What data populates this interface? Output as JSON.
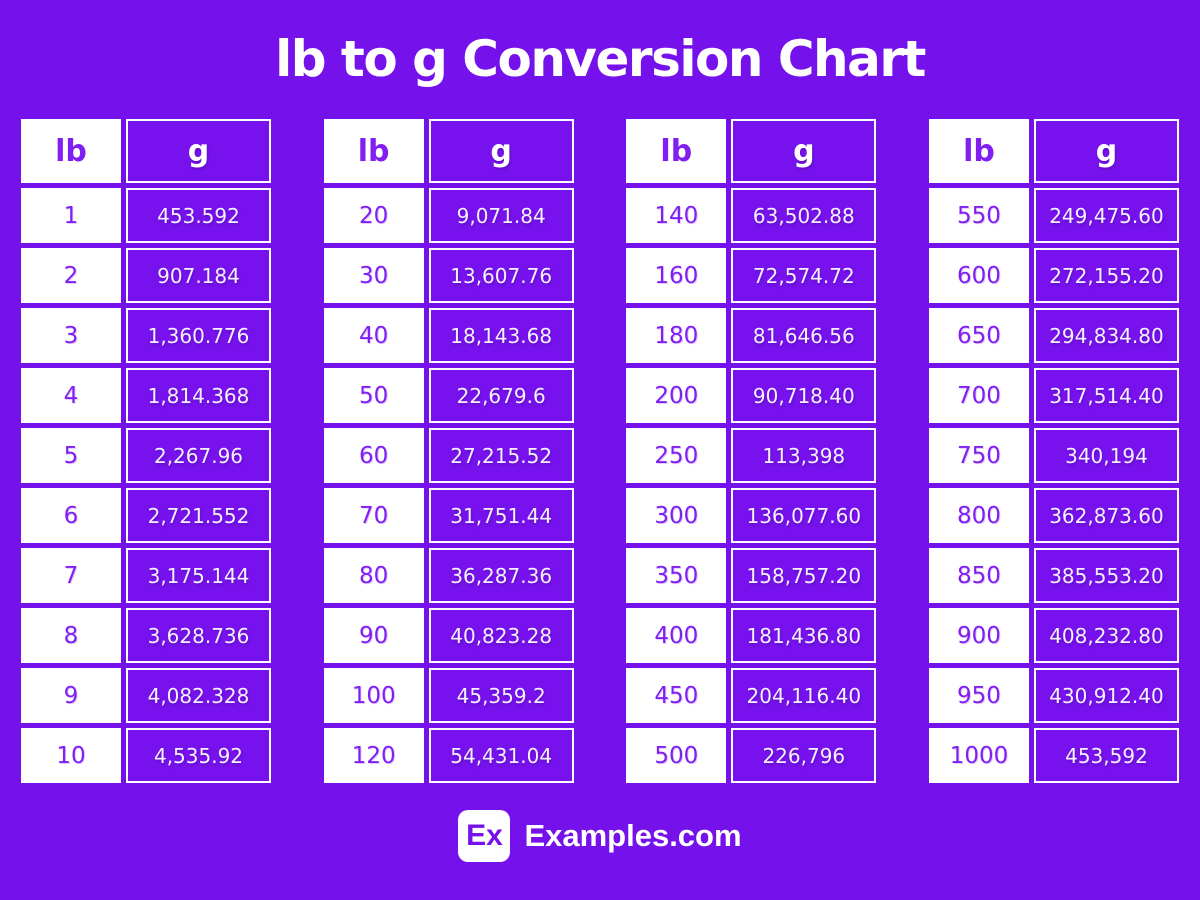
{
  "page": {
    "title": "lb to g Conversion Chart"
  },
  "colors": {
    "background": "#7512EC",
    "cell_purple": "#7712EE",
    "text_purple": "#811FF2",
    "white": "#FFFFFF"
  },
  "columns": {
    "lb": "lb",
    "g": "g"
  },
  "tables": [
    {
      "rows": [
        [
          "1",
          "453.592"
        ],
        [
          "2",
          "907.184"
        ],
        [
          "3",
          "1,360.776"
        ],
        [
          "4",
          "1,814.368"
        ],
        [
          "5",
          "2,267.96"
        ],
        [
          "6",
          "2,721.552"
        ],
        [
          "7",
          "3,175.144"
        ],
        [
          "8",
          "3,628.736"
        ],
        [
          "9",
          "4,082.328"
        ],
        [
          "10",
          "4,535.92"
        ]
      ]
    },
    {
      "rows": [
        [
          "20",
          "9,071.84"
        ],
        [
          "30",
          "13,607.76"
        ],
        [
          "40",
          "18,143.68"
        ],
        [
          "50",
          "22,679.6"
        ],
        [
          "60",
          "27,215.52"
        ],
        [
          "70",
          "31,751.44"
        ],
        [
          "80",
          "36,287.36"
        ],
        [
          "90",
          "40,823.28"
        ],
        [
          "100",
          "45,359.2"
        ],
        [
          "120",
          "54,431.04"
        ]
      ]
    },
    {
      "rows": [
        [
          "140",
          "63,502.88"
        ],
        [
          "160",
          "72,574.72"
        ],
        [
          "180",
          "81,646.56"
        ],
        [
          "200",
          "90,718.40"
        ],
        [
          "250",
          "113,398"
        ],
        [
          "300",
          "136,077.60"
        ],
        [
          "350",
          "158,757.20"
        ],
        [
          "400",
          "181,436.80"
        ],
        [
          "450",
          "204,116.40"
        ],
        [
          "500",
          "226,796"
        ]
      ]
    },
    {
      "rows": [
        [
          "550",
          "249,475.60"
        ],
        [
          "600",
          "272,155.20"
        ],
        [
          "650",
          "294,834.80"
        ],
        [
          "700",
          "317,514.40"
        ],
        [
          "750",
          "340,194"
        ],
        [
          "800",
          "362,873.60"
        ],
        [
          "850",
          "385,553.20"
        ],
        [
          "900",
          "408,232.80"
        ],
        [
          "950",
          "430,912.40"
        ],
        [
          "1000",
          "453,592"
        ]
      ]
    }
  ],
  "footer": {
    "logo": "Ex",
    "brand": "Examples.com"
  },
  "chart_data": {
    "type": "table",
    "title": "lb to g Conversion Chart",
    "columns": [
      "lb",
      "g"
    ],
    "rows": [
      [
        1,
        453.592
      ],
      [
        2,
        907.184
      ],
      [
        3,
        1360.776
      ],
      [
        4,
        1814.368
      ],
      [
        5,
        2267.96
      ],
      [
        6,
        2721.552
      ],
      [
        7,
        3175.144
      ],
      [
        8,
        3628.736
      ],
      [
        9,
        4082.328
      ],
      [
        10,
        4535.92
      ],
      [
        20,
        9071.84
      ],
      [
        30,
        13607.76
      ],
      [
        40,
        18143.68
      ],
      [
        50,
        22679.6
      ],
      [
        60,
        27215.52
      ],
      [
        70,
        31751.44
      ],
      [
        80,
        36287.36
      ],
      [
        90,
        40823.28
      ],
      [
        100,
        45359.2
      ],
      [
        120,
        54431.04
      ],
      [
        140,
        63502.88
      ],
      [
        160,
        72574.72
      ],
      [
        180,
        81646.56
      ],
      [
        200,
        90718.4
      ],
      [
        250,
        113398
      ],
      [
        300,
        136077.6
      ],
      [
        350,
        158757.2
      ],
      [
        400,
        181436.8
      ],
      [
        450,
        204116.4
      ],
      [
        500,
        226796
      ],
      [
        550,
        249475.6
      ],
      [
        600,
        272155.2
      ],
      [
        650,
        294834.8
      ],
      [
        700,
        317514.4
      ],
      [
        750,
        340194
      ],
      [
        800,
        362873.6
      ],
      [
        850,
        385553.2
      ],
      [
        900,
        408232.8
      ],
      [
        950,
        430912.4
      ],
      [
        1000,
        453592
      ]
    ]
  }
}
